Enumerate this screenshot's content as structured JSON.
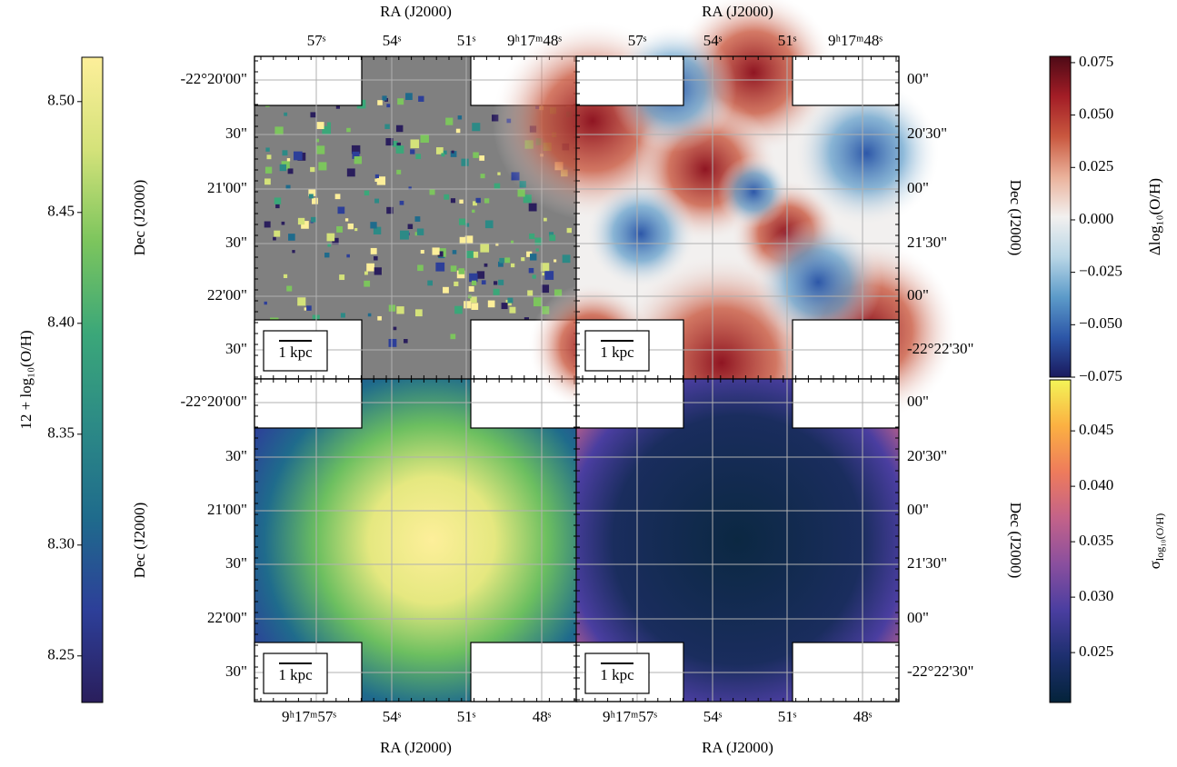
{
  "figure": {
    "axes": {
      "ra_label": "RA (J2000)",
      "dec_label": "Dec (J2000)",
      "ra_ticks_top": [
        "57ˢ",
        "54ˢ",
        "51ˢ",
        "9ʰ17ᵐ48ˢ"
      ],
      "ra_ticks_bottom": [
        "9ʰ17ᵐ57ˢ",
        "54ˢ",
        "51ˢ",
        "48ˢ"
      ],
      "dec_ticks_left": [
        "-22°20'00\"",
        "30\"",
        "21'00\"",
        "30\"",
        "22'00\"",
        "30\""
      ],
      "dec_ticks_right": [
        "00\"",
        "20'30\"",
        "00\"",
        "21'30\"",
        "00\"",
        "-22°22'30\""
      ],
      "scale_bar": "1 kpc"
    },
    "colorbars": [
      {
        "label": "12 + log₁₀(O/H)",
        "ylim": [
          8.229,
          8.52
        ],
        "yticks": [
          {
            "value": 8.25,
            "label": "8.25"
          },
          {
            "value": 8.3,
            "label": "8.30"
          },
          {
            "value": 8.35,
            "label": "8.35"
          },
          {
            "value": 8.4,
            "label": "8.40"
          },
          {
            "value": 8.45,
            "label": "8.45"
          },
          {
            "value": 8.5,
            "label": "8.50"
          }
        ],
        "colors": [
          "#2a1e5c",
          "#2d3f99",
          "#1f6b8c",
          "#2c8a86",
          "#3ba779",
          "#7cc55d",
          "#d4e27a",
          "#fdef9a"
        ]
      },
      {
        "label": "Δlog₁₀(O/H)",
        "ylim": [
          -0.075,
          0.078
        ],
        "yticks": [
          {
            "value": -0.075,
            "label": "−0.075"
          },
          {
            "value": -0.05,
            "label": "−0.050"
          },
          {
            "value": -0.025,
            "label": "−0.025"
          },
          {
            "value": 0,
            "label": "0.000"
          },
          {
            "value": 0.025,
            "label": "0.025"
          },
          {
            "value": 0.05,
            "label": "0.050"
          },
          {
            "value": 0.075,
            "label": "0.075"
          }
        ],
        "colors": [
          "#1a1a5e",
          "#2d57a8",
          "#5c9bc9",
          "#b9d6e6",
          "#f2f0ef",
          "#eab19a",
          "#c9583f",
          "#a31d26",
          "#4d0a16"
        ]
      },
      {
        "label": {
          "symbol": "σ",
          "subscript": "log₁₀(O/H)"
        },
        "ylim": [
          0.0205,
          0.0496
        ],
        "yticks": [
          {
            "value": 0.025,
            "label": "0.025"
          },
          {
            "value": 0.03,
            "label": "0.030"
          },
          {
            "value": 0.035,
            "label": "0.035"
          },
          {
            "value": 0.04,
            "label": "0.040"
          },
          {
            "value": 0.045,
            "label": "0.045"
          }
        ],
        "colors": [
          "#04233a",
          "#1d2f6e",
          "#4a3ea0",
          "#8a4f9e",
          "#c36289",
          "#ee7b5c",
          "#fbb042",
          "#f3f457"
        ]
      }
    ]
  }
}
